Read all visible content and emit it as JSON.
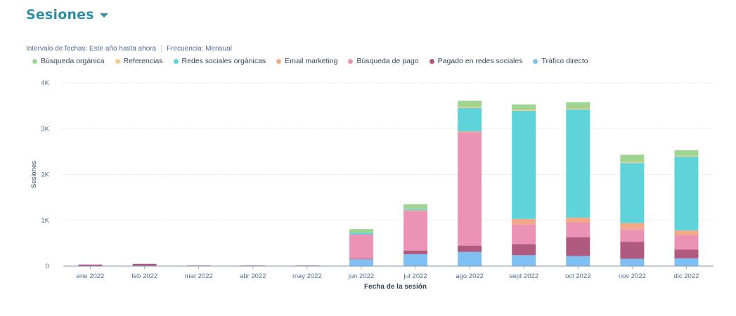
{
  "header": {
    "title": "Sesiones"
  },
  "filters": {
    "date_range": "Intervalo de fechas: Este año hasta ahora",
    "frequency": "Frecuencia: Mensual"
  },
  "chart_data": {
    "type": "bar",
    "stacked": true,
    "xlabel": "Fecha de la sesión",
    "ylabel": "Sesiones",
    "ylim": [
      0,
      4000
    ],
    "yticks": [
      0,
      1000,
      2000,
      3000,
      4000
    ],
    "ytick_labels": [
      "0",
      "1K",
      "2K",
      "3K",
      "4K"
    ],
    "grid": true,
    "legend_position": "top-left",
    "categories": [
      "ene 2022",
      "feb 2022",
      "mar 2022",
      "abr 2022",
      "may 2022",
      "jun 2022",
      "jul 2022",
      "ago 2022",
      "sept 2022",
      "oct 2022",
      "nov 2022",
      "dic 2022"
    ],
    "series": [
      {
        "name": "Tráfico directo",
        "color": "#7fc0f2",
        "values": [
          5,
          10,
          2,
          2,
          2,
          150,
          260,
          310,
          240,
          220,
          160,
          170
        ]
      },
      {
        "name": "Pagado en redes sociales",
        "color": "#b05a80",
        "values": [
          30,
          40,
          3,
          2,
          2,
          10,
          80,
          140,
          240,
          410,
          370,
          190
        ]
      },
      {
        "name": "Búsqueda de pago",
        "color": "#ec92b4",
        "values": [
          0,
          0,
          0,
          0,
          0,
          530,
          860,
          2470,
          430,
          320,
          270,
          320
        ]
      },
      {
        "name": "Email marketing",
        "color": "#f2a987",
        "values": [
          0,
          0,
          0,
          0,
          0,
          0,
          20,
          20,
          120,
          110,
          140,
          100
        ]
      },
      {
        "name": "Redes sociales orgánicas",
        "color": "#5ed4da",
        "values": [
          0,
          0,
          0,
          0,
          0,
          40,
          30,
          510,
          2360,
          2360,
          1310,
          1610
        ]
      },
      {
        "name": "Referencias",
        "color": "#f7c98a",
        "values": [
          0,
          0,
          0,
          0,
          0,
          0,
          10,
          20,
          20,
          20,
          20,
          20
        ]
      },
      {
        "name": "Búsqueda orgánica",
        "color": "#9fd591",
        "values": [
          0,
          0,
          0,
          0,
          0,
          80,
          90,
          140,
          120,
          140,
          160,
          120
        ]
      }
    ]
  }
}
